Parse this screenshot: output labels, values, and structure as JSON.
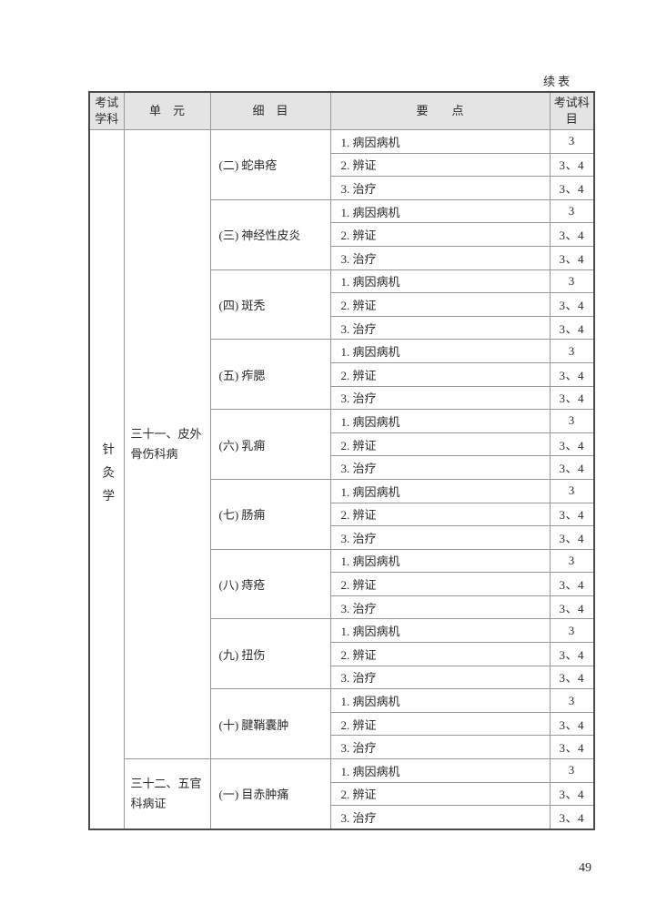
{
  "page": {
    "continuation_label": "续表",
    "page_number": "49"
  },
  "colors": {
    "header_background": "#e4e4e4",
    "inner_border": "#989898",
    "outer_border": "#4a4a4a",
    "text": "#2b2b2b"
  },
  "table": {
    "column_headers": [
      "考试学科",
      "单　元",
      "细　目",
      "要　　点",
      "考试科目"
    ],
    "subject": "针灸学",
    "units": [
      {
        "name": "三十一、皮外骨伤科病",
        "items": [
          {
            "name": "(二) 蛇串疮",
            "points": [
              {
                "text": "1. 病因病机",
                "subjects": "3"
              },
              {
                "text": "2. 辨证",
                "subjects": "3、4"
              },
              {
                "text": "3. 治疗",
                "subjects": "3、4"
              }
            ]
          },
          {
            "name": "(三) 神经性皮炎",
            "points": [
              {
                "text": "1. 病因病机",
                "subjects": "3"
              },
              {
                "text": "2. 辨证",
                "subjects": "3、4"
              },
              {
                "text": "3. 治疗",
                "subjects": "3、4"
              }
            ]
          },
          {
            "name": "(四) 斑秃",
            "points": [
              {
                "text": "1. 病因病机",
                "subjects": "3"
              },
              {
                "text": "2. 辨证",
                "subjects": "3、4"
              },
              {
                "text": "3. 治疗",
                "subjects": "3、4"
              }
            ]
          },
          {
            "name": "(五) 痄腮",
            "points": [
              {
                "text": "1. 病因病机",
                "subjects": "3"
              },
              {
                "text": "2. 辨证",
                "subjects": "3、4"
              },
              {
                "text": "3. 治疗",
                "subjects": "3、4"
              }
            ]
          },
          {
            "name": "(六) 乳痈",
            "points": [
              {
                "text": "1. 病因病机",
                "subjects": "3"
              },
              {
                "text": "2. 辨证",
                "subjects": "3、4"
              },
              {
                "text": "3. 治疗",
                "subjects": "3、4"
              }
            ]
          },
          {
            "name": "(七) 肠痈",
            "points": [
              {
                "text": "1. 病因病机",
                "subjects": "3"
              },
              {
                "text": "2. 辨证",
                "subjects": "3、4"
              },
              {
                "text": "3. 治疗",
                "subjects": "3、4"
              }
            ]
          },
          {
            "name": "(八) 痔疮",
            "points": [
              {
                "text": "1. 病因病机",
                "subjects": "3"
              },
              {
                "text": "2. 辨证",
                "subjects": "3、4"
              },
              {
                "text": "3. 治疗",
                "subjects": "3、4"
              }
            ]
          },
          {
            "name": "(九) 扭伤",
            "points": [
              {
                "text": "1. 病因病机",
                "subjects": "3"
              },
              {
                "text": "2. 辨证",
                "subjects": "3、4"
              },
              {
                "text": "3. 治疗",
                "subjects": "3、4"
              }
            ]
          },
          {
            "name": "(十) 腱鞘囊肿",
            "points": [
              {
                "text": "1. 病因病机",
                "subjects": "3"
              },
              {
                "text": "2. 辨证",
                "subjects": "3、4"
              },
              {
                "text": "3. 治疗",
                "subjects": "3、4"
              }
            ]
          }
        ]
      },
      {
        "name": "三十二、五官科病证",
        "items": [
          {
            "name": "(一) 目赤肿痛",
            "points": [
              {
                "text": "1. 病因病机",
                "subjects": "3"
              },
              {
                "text": "2. 辨证",
                "subjects": "3、4"
              },
              {
                "text": "3. 治疗",
                "subjects": "3、4"
              }
            ]
          }
        ]
      }
    ]
  }
}
